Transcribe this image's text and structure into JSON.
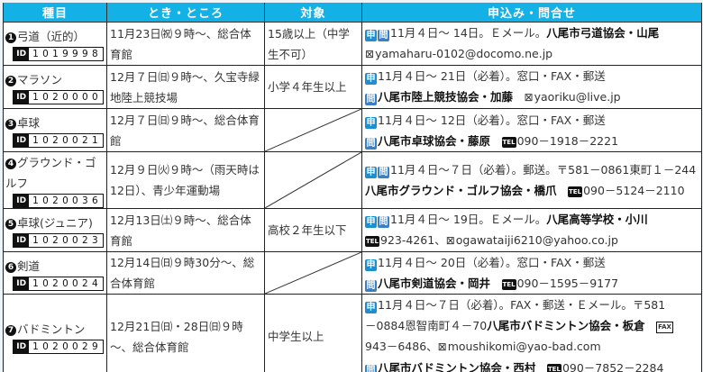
{
  "headers": [
    "種目",
    "とき・ところ",
    "対象",
    "申込み・問合せ"
  ],
  "icons": {
    "apply": "申",
    "inquiry": "問",
    "tel": "TEL",
    "fax": "FAX",
    "mail": "⊠",
    "id": "ID"
  },
  "colors": {
    "header_bg": "#14b1e7",
    "badge": "#1b8fd0"
  },
  "rows": [
    {
      "num": "1",
      "name": "弓道（近的）",
      "id": "1019998",
      "when": "11月23日㈷９時～、総合体育館",
      "target": "15歳以上（中学生不可）",
      "contact": [
        [
          {
            "k": "apply"
          },
          {
            "k": "inquiry"
          },
          {
            "k": "text",
            "t": "11月４日～ 14日。Ｅメール。"
          },
          {
            "k": "bold",
            "t": "八尾市弓道協会・山尾"
          }
        ],
        [
          {
            "k": "mail"
          },
          {
            "k": "text",
            "t": "yamaharu-0102@docomo.ne.jp"
          }
        ]
      ]
    },
    {
      "num": "2",
      "name": "マラソン",
      "id": "1020000",
      "when": "12月７日㈰９時～、久宝寺緑地陸上競技場",
      "target": "小学４年生以上",
      "contact": [
        [
          {
            "k": "apply"
          },
          {
            "k": "text",
            "t": "11月４日～ 21日（必着）。窓口・FAX・郵送"
          }
        ],
        [
          {
            "k": "inquiry"
          },
          {
            "k": "bold",
            "t": "八尾市陸上競技協会・加藤"
          },
          {
            "k": "text",
            "t": "　"
          },
          {
            "k": "mail"
          },
          {
            "k": "text",
            "t": "yaoriku@live.jp"
          }
        ]
      ]
    },
    {
      "num": "3",
      "name": "卓球",
      "id": "1020021",
      "when": "12月７日㈰９時～、総合体育館",
      "target": "",
      "contact": [
        [
          {
            "k": "apply"
          },
          {
            "k": "text",
            "t": "11月４日～ 12日（必着）。窓口・FAX・郵送"
          }
        ],
        [
          {
            "k": "inquiry"
          },
          {
            "k": "bold",
            "t": "八尾市卓球協会・藤原"
          },
          {
            "k": "text",
            "t": "　"
          },
          {
            "k": "tel"
          },
          {
            "k": "text",
            "t": "090－1918－2221"
          }
        ]
      ]
    },
    {
      "num": "4",
      "name": "グラウンド・ゴルフ",
      "id": "1020036",
      "when": "12月９日㈫９時～（雨天時は12日）、青少年運動場",
      "target": "",
      "contact": [
        [
          {
            "k": "apply"
          },
          {
            "k": "inquiry"
          },
          {
            "k": "text",
            "t": "11月４日～７日（必着）。郵送。〒581－0861東町１－244"
          }
        ],
        [
          {
            "k": "bold",
            "t": "八尾市グラウンド・ゴルフ協会・橋爪"
          },
          {
            "k": "text",
            "t": "　"
          },
          {
            "k": "tel"
          },
          {
            "k": "text",
            "t": "090－5124－2110"
          }
        ]
      ]
    },
    {
      "num": "5",
      "name": "卓球(ジュニア)",
      "id": "1020023",
      "when": "12月13日㈯９時～、総合体育館",
      "target": "高校２年生以下",
      "contact": [
        [
          {
            "k": "apply"
          },
          {
            "k": "inquiry"
          },
          {
            "k": "text",
            "t": "11月４日～ 19日。Ｅメール。"
          },
          {
            "k": "bold",
            "t": "八尾高等学校・小川"
          }
        ],
        [
          {
            "k": "tel"
          },
          {
            "k": "text",
            "t": "923-4261、"
          },
          {
            "k": "mail"
          },
          {
            "k": "text",
            "t": "ogawataiji6210@yahoo.co.jp"
          }
        ]
      ]
    },
    {
      "num": "6",
      "name": "剣道",
      "id": "1020024",
      "when": "12月14日㈰９時30分～、総合体育館",
      "target": "",
      "contact": [
        [
          {
            "k": "apply"
          },
          {
            "k": "text",
            "t": "11月４日～ 20日（必着）。窓口・FAX・郵送"
          }
        ],
        [
          {
            "k": "inquiry"
          },
          {
            "k": "bold",
            "t": "八尾市剣道協会・岡井"
          },
          {
            "k": "text",
            "t": "　"
          },
          {
            "k": "tel"
          },
          {
            "k": "text",
            "t": "090－1595－9177"
          }
        ]
      ]
    },
    {
      "num": "7",
      "name": "バドミントン",
      "id": "1020029",
      "when": "12月21日㈰・28日㈰９時～、総合体育館",
      "target": "中学生以上",
      "contact": [
        [
          {
            "k": "apply"
          },
          {
            "k": "text",
            "t": "11月４日～７日（必着）。FAX・郵送・Ｅメール。〒581"
          }
        ],
        [
          {
            "k": "text",
            "t": "－0884恩智南町４－70"
          },
          {
            "k": "bold",
            "t": "八尾市バドミントン協会・板倉"
          },
          {
            "k": "text",
            "t": "　"
          },
          {
            "k": "fax"
          }
        ],
        [
          {
            "k": "text",
            "t": "943－6486、"
          },
          {
            "k": "mail"
          },
          {
            "k": "text",
            "t": "moushikomi@yao-bad.com"
          }
        ],
        [
          {
            "k": "inquiry"
          },
          {
            "k": "bold",
            "t": "八尾市バドミントン協会・西村"
          },
          {
            "k": "text",
            "t": "　"
          },
          {
            "k": "tel"
          },
          {
            "k": "text",
            "t": "090－7852－2284"
          }
        ]
      ]
    }
  ]
}
